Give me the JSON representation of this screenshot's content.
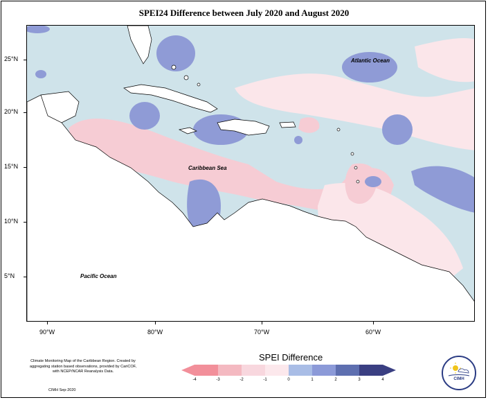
{
  "title": "SPEI24 Difference between July 2020 and August 2020",
  "latitude_labels": [
    "25°N",
    "20°N",
    "15°N",
    "10°N",
    "5°N"
  ],
  "longitude_labels": [
    "90°W",
    "80°W",
    "70°W",
    "60°W"
  ],
  "region_labels": {
    "atlantic": "Atlantic Ocean",
    "caribbean": "Caribbean Sea",
    "pacific": "Pacific Ocean"
  },
  "legend": {
    "title": "SPEI Difference",
    "labels": [
      "-4",
      "-3",
      "-2",
      "-1",
      "0",
      "1",
      "2",
      "3",
      "4"
    ],
    "colors": [
      "#f28f9a",
      "#f4b9c1",
      "#f8d7de",
      "#fce8ec",
      "#d2e6ee",
      "#a9bde6",
      "#8c9ad8",
      "#5e6fb0",
      "#3a3f82"
    ]
  },
  "credits": "Climate Monitoring Map of the Caribbean Region. Created by aggregating station based observations, provided by CariCOF, with NCEP/NCAR Reanalysis Data.",
  "credit_date": "CIMH  Sep-2020",
  "logo_text": "CIMH",
  "colors": {
    "neutral": "#cfe3ea",
    "pink_light": "#fbe6ea",
    "pink": "#f6ccd4",
    "blue": "#9ea9de",
    "blue_dark": "#8794cf",
    "land": "#ffffff"
  }
}
